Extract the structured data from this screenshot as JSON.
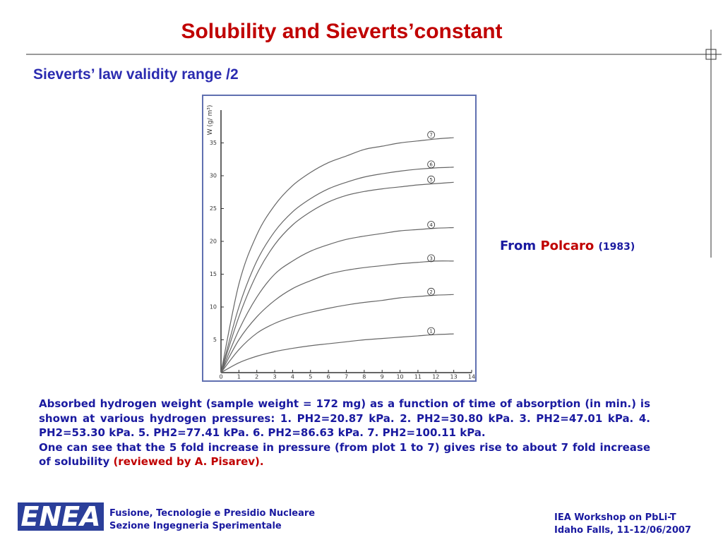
{
  "title": "Solubility and Sieverts’constant",
  "subtitle": "Sieverts’ law validity range /2",
  "source": {
    "prefix": "From",
    "author": "Polcaro",
    "year": "(1983)"
  },
  "caption": {
    "paragraph1": "Absorbed hydrogen weight  (sample weight = 172 mg) as a function of time of absorption (in min.) is shown at various hydrogen pressures:  1. PH2=20.87 kPa.  2. PH2=30.80 kPa.  3. PH2=47.01 kPa.   4. PH2=53.30 kPa.   5. PH2=77.41 kPa.    6. PH2=86.63 kPa.    7. PH2=100.11 kPa.",
    "paragraph2": "One can see that the 5 fold increase in pressure (from plot 1 to 7) gives rise to about 7 fold increase of solubility",
    "note": "(reviewed by A. Pisarev)."
  },
  "footer": {
    "logo": "ENEA",
    "left": [
      "Fusione, Tecnologie e Presidio Nucleare",
      "Sezione Ingegneria Sperimentale"
    ],
    "right": [
      "IEA Workshop on PbLi-T",
      "Idaho Falls, 11-12/06/2007"
    ]
  },
  "chart_data": {
    "type": "line",
    "y_label": "W (g/ m³)",
    "x": [
      0,
      1,
      2,
      3,
      4,
      5,
      6,
      7,
      8,
      9,
      10,
      11,
      12,
      13
    ],
    "xlim": [
      0,
      14
    ],
    "xticks": [
      0,
      1,
      2,
      3,
      4,
      5,
      6,
      7,
      8,
      9,
      10,
      11,
      12,
      13,
      14
    ],
    "ylim": [
      0,
      40
    ],
    "yticks": [
      5,
      10,
      15,
      20,
      25,
      30,
      35
    ],
    "series": [
      {
        "name": "1",
        "color": "#666666",
        "values": [
          0,
          1.5,
          2.5,
          3.2,
          3.7,
          4.1,
          4.4,
          4.7,
          5,
          5.2,
          5.4,
          5.6,
          5.8,
          5.9
        ]
      },
      {
        "name": "2",
        "color": "#666666",
        "values": [
          0,
          3.5,
          6,
          7.5,
          8.5,
          9.2,
          9.8,
          10.3,
          10.7,
          11,
          11.4,
          11.6,
          11.8,
          11.9
        ]
      },
      {
        "name": "3",
        "color": "#666666",
        "values": [
          0,
          5,
          8.5,
          11,
          12.8,
          14,
          15,
          15.6,
          16,
          16.3,
          16.6,
          16.8,
          17,
          17
        ]
      },
      {
        "name": "4",
        "color": "#666666",
        "values": [
          0,
          6.5,
          11.5,
          15,
          17,
          18.5,
          19.5,
          20.3,
          20.8,
          21.2,
          21.6,
          21.8,
          22,
          22.1
        ]
      },
      {
        "name": "5",
        "color": "#666666",
        "values": [
          0,
          8.5,
          15,
          19.5,
          22.5,
          24.5,
          26,
          27,
          27.6,
          28,
          28.3,
          28.6,
          28.8,
          29
        ]
      },
      {
        "name": "6",
        "color": "#666666",
        "values": [
          0,
          10,
          17,
          21.5,
          24.5,
          26.5,
          28,
          29,
          29.8,
          30.3,
          30.7,
          31,
          31.2,
          31.3
        ]
      },
      {
        "name": "7",
        "color": "#666666",
        "values": [
          0,
          13.5,
          21,
          25.5,
          28.5,
          30.5,
          32,
          33,
          34,
          34.5,
          35,
          35.3,
          35.6,
          35.8
        ]
      }
    ]
  }
}
